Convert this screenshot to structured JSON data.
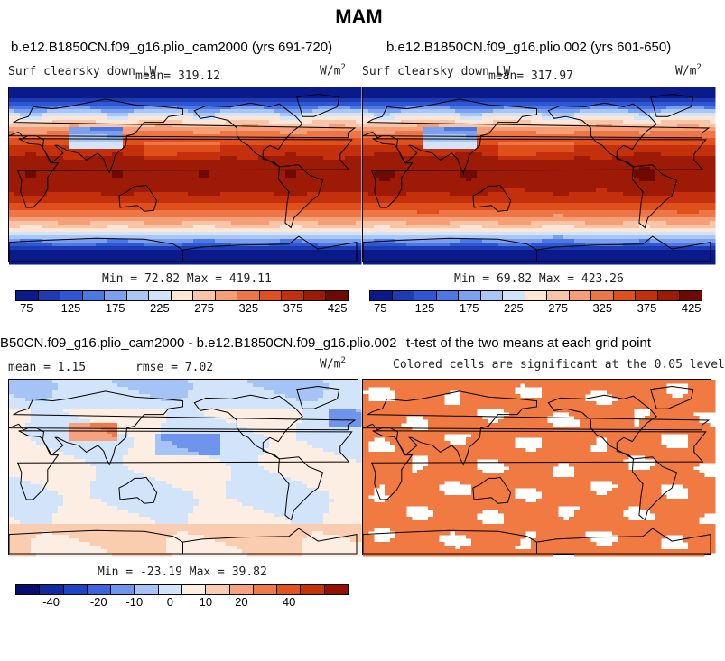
{
  "figure_title": "MAM",
  "colors": {
    "abs_palette": [
      "#0a1a8a",
      "#1d3cb4",
      "#2f56d4",
      "#4c78e6",
      "#7aa0ef",
      "#a9c6f5",
      "#d3e4fa",
      "#fde6d6",
      "#fac4a6",
      "#f69e76",
      "#ee7646",
      "#e0501c",
      "#c42f0c",
      "#9c1a06",
      "#6e0a02"
    ],
    "diff_palette": [
      "#050e6e",
      "#102aa0",
      "#1e44c4",
      "#3c64dc",
      "#6e94ec",
      "#a5c3f4",
      "#d2e4fa",
      "#fdeee3",
      "#fbcdb0",
      "#f6a27e",
      "#ee7a4c",
      "#e05420",
      "#c43408",
      "#960f02"
    ],
    "sig_fill": "#f07a42"
  },
  "panels": {
    "p1": {
      "title": "b.e12.B1850CN.f09_g16.plio_cam2000 (yrs 691-720)",
      "variable": "Surf clearsky down LW",
      "mean": "mean= 319.12",
      "units": "W/m",
      "units_sup": "2",
      "stats": "Min =  72.82 Max = 419.11",
      "ticks": [
        "75",
        "125",
        "175",
        "225",
        "275",
        "325",
        "375",
        "425"
      ]
    },
    "p2": {
      "title": "b.e12.B1850CN.f09_g16.plio.002 (yrs 601-650)",
      "variable": "Surf clearsky down LW",
      "mean": "mean= 317.97",
      "units": "W/m",
      "units_sup": "2",
      "stats": "Min =  69.82 Max = 423.26",
      "ticks": [
        "75",
        "125",
        "175",
        "225",
        "275",
        "325",
        "375",
        "425"
      ]
    },
    "p3": {
      "title": "B50CN.f09_g16.plio_cam2000 - b.e12.B1850CN.f09_g16.plio.002",
      "mean": "mean =   1.15",
      "rmse": "rmse =   7.02",
      "units": "W/m",
      "units_sup": "2",
      "stats": "Min = -23.19 Max =  39.82",
      "ticks": [
        "-40",
        "-20",
        "-10",
        "0",
        "10",
        "20",
        "40"
      ]
    },
    "p4": {
      "title": "t-test of the two means at each grid point",
      "subtitle": "Colored cells are significant at the 0.05 level"
    }
  },
  "chart_data": [
    {
      "type": "heatmap",
      "title": "b.e12.B1850CN.f09_g16.plio_cam2000 (yrs 691-720)",
      "variable": "Surf clearsky down LW",
      "units": "W/m2",
      "mean": 319.12,
      "min": 72.82,
      "max": 419.11,
      "colorbar_levels": [
        75,
        100,
        125,
        150,
        175,
        200,
        225,
        250,
        275,
        300,
        325,
        350,
        375,
        400,
        425
      ],
      "colorbar_ticks": [
        75,
        125,
        175,
        225,
        275,
        325,
        375,
        425
      ]
    },
    {
      "type": "heatmap",
      "title": "b.e12.B1850CN.f09_g16.plio.002 (yrs 601-650)",
      "variable": "Surf clearsky down LW",
      "units": "W/m2",
      "mean": 317.97,
      "min": 69.82,
      "max": 423.26,
      "colorbar_levels": [
        75,
        100,
        125,
        150,
        175,
        200,
        225,
        250,
        275,
        300,
        325,
        350,
        375,
        400,
        425
      ],
      "colorbar_ticks": [
        75,
        125,
        175,
        225,
        275,
        325,
        375,
        425
      ]
    },
    {
      "type": "heatmap",
      "title": "B50CN.f09_g16.plio_cam2000 - b.e12.B1850CN.f09_g16.plio.002",
      "units": "W/m2",
      "mean": 1.15,
      "rmse": 7.02,
      "min": -23.19,
      "max": 39.82,
      "colorbar_levels": [
        -50,
        -40,
        -30,
        -20,
        -15,
        -10,
        -5,
        0,
        5,
        10,
        15,
        20,
        30,
        40,
        50
      ],
      "colorbar_ticks": [
        -40,
        -20,
        -10,
        0,
        10,
        20,
        40
      ]
    },
    {
      "type": "heatmap",
      "title": "t-test of the two means at each grid point",
      "subtitle": "Colored cells are significant at the 0.05 level",
      "significance_level": 0.05
    }
  ]
}
